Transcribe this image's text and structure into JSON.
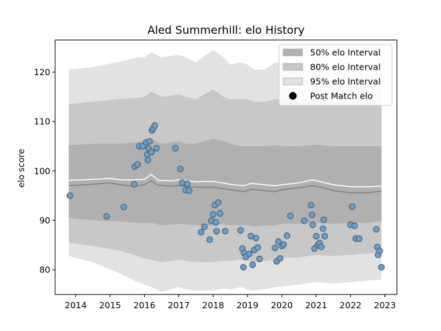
{
  "chart_data": {
    "type": "scatter",
    "title": "Aled Summerhill: elo History",
    "xlabel": "",
    "ylabel": "elo score",
    "xlim": [
      2013.4,
      2023.35
    ],
    "ylim": [
      75,
      126.5
    ],
    "x_ticks": [
      2014,
      2015,
      2016,
      2017,
      2018,
      2019,
      2020,
      2021,
      2022,
      2023
    ],
    "y_ticks": [
      80,
      90,
      100,
      110,
      120
    ],
    "legend": {
      "placement": "top-right",
      "entries": [
        "50% elo Interval",
        "80% elo Interval",
        "95% elo Interval",
        "Post Match elo"
      ]
    },
    "colors": {
      "band50": "#b0b0b0",
      "band80": "#c8c8c8",
      "band95": "#e2e2e2",
      "median_line": "#808080",
      "mean_line": "#ffffff",
      "points": "#6f9ec4",
      "points_edge": "#3d5a73"
    },
    "series": [
      {
        "name": "95% elo Interval",
        "x": [
          2013.8,
          2014.5,
          2015.2,
          2015.8,
          2016.0,
          2016.2,
          2016.5,
          2017.0,
          2017.2,
          2017.5,
          2018.0,
          2018.3,
          2018.5,
          2018.8,
          2019.0,
          2019.2,
          2019.5,
          2019.8,
          2020.0,
          2020.5,
          2021.0,
          2021.5,
          2022.0,
          2022.5,
          2022.9
        ],
        "lower": [
          82.8,
          81.5,
          79.5,
          77.5,
          77.0,
          76.5,
          75.5,
          76.5,
          76.0,
          75.8,
          75.8,
          76.2,
          76.0,
          76.5,
          76.0,
          75.8,
          76.0,
          76.5,
          76.6,
          77.0,
          77.5,
          77.2,
          77.5,
          77.8,
          78.0
        ],
        "upper": [
          120.5,
          121.0,
          122.0,
          123.0,
          123.0,
          124.0,
          123.0,
          123.5,
          123.0,
          122.0,
          124.5,
          123.0,
          121.5,
          122.0,
          121.5,
          120.5,
          120.5,
          122.0,
          121.5,
          121.5,
          121.5,
          121.0,
          121.0,
          120.5,
          120.0
        ]
      },
      {
        "name": "80% elo Interval",
        "x": [
          2013.8,
          2014.5,
          2015.2,
          2015.8,
          2016.0,
          2016.2,
          2016.5,
          2017.0,
          2017.2,
          2017.5,
          2018.0,
          2018.3,
          2018.5,
          2018.8,
          2019.0,
          2019.2,
          2019.5,
          2019.8,
          2020.0,
          2020.5,
          2021.0,
          2021.5,
          2022.0,
          2022.5,
          2022.9
        ],
        "lower": [
          85.5,
          84.8,
          84.0,
          82.8,
          82.3,
          82.0,
          81.5,
          82.0,
          81.8,
          81.5,
          81.5,
          81.8,
          81.8,
          82.0,
          81.8,
          81.5,
          81.8,
          82.0,
          82.5,
          82.5,
          83.0,
          82.8,
          83.0,
          83.3,
          83.5
        ],
        "upper": [
          113.5,
          114.0,
          114.5,
          114.8,
          115.0,
          116.0,
          115.0,
          115.5,
          115.0,
          114.5,
          116.5,
          115.0,
          114.5,
          114.5,
          114.5,
          114.0,
          114.0,
          114.5,
          114.5,
          114.5,
          114.5,
          114.0,
          114.0,
          113.5,
          113.5
        ]
      },
      {
        "name": "50% elo Interval",
        "x": [
          2013.8,
          2014.5,
          2015.2,
          2015.8,
          2016.0,
          2016.2,
          2016.5,
          2017.0,
          2017.2,
          2017.5,
          2018.0,
          2018.3,
          2018.5,
          2018.8,
          2019.0,
          2019.2,
          2019.5,
          2019.8,
          2020.0,
          2020.5,
          2021.0,
          2021.5,
          2022.0,
          2022.5,
          2022.9
        ],
        "lower": [
          90.5,
          90.0,
          89.8,
          89.5,
          89.5,
          89.5,
          89.0,
          89.3,
          89.2,
          89.0,
          89.0,
          89.3,
          89.0,
          89.0,
          89.0,
          88.8,
          89.0,
          89.0,
          89.3,
          89.3,
          89.5,
          89.3,
          89.5,
          89.5,
          89.8
        ],
        "upper": [
          105.2,
          105.5,
          105.5,
          105.8,
          106.0,
          106.5,
          105.5,
          106.0,
          105.5,
          105.5,
          106.5,
          106.0,
          105.5,
          105.0,
          105.0,
          105.0,
          105.0,
          105.2,
          105.0,
          105.0,
          105.3,
          105.0,
          105.0,
          105.0,
          105.0
        ]
      },
      {
        "name": "median",
        "x": [
          2013.8,
          2014.5,
          2015.0,
          2015.3,
          2015.7,
          2016.0,
          2016.2,
          2016.4,
          2016.8,
          2017.0,
          2017.5,
          2018.0,
          2018.5,
          2018.9,
          2019.1,
          2019.5,
          2019.8,
          2020.0,
          2020.5,
          2020.9,
          2021.2,
          2021.5,
          2022.0,
          2022.5,
          2022.9
        ],
        "values": [
          97.0,
          97.3,
          97.6,
          97.2,
          96.9,
          97.2,
          98.0,
          97.1,
          96.9,
          97.0,
          96.7,
          96.7,
          96.2,
          95.8,
          96.3,
          96.0,
          95.8,
          96.2,
          96.6,
          97.0,
          96.6,
          96.0,
          95.6,
          95.6,
          95.9
        ]
      },
      {
        "name": "mean",
        "x": [
          2013.8,
          2014.5,
          2015.0,
          2015.3,
          2015.7,
          2016.0,
          2016.2,
          2016.4,
          2016.8,
          2017.0,
          2017.5,
          2018.0,
          2018.5,
          2018.9,
          2019.1,
          2019.5,
          2019.8,
          2020.0,
          2020.5,
          2020.9,
          2021.2,
          2021.5,
          2022.0,
          2022.5,
          2022.9
        ],
        "values": [
          98.1,
          98.3,
          98.5,
          98.2,
          98.2,
          98.3,
          99.3,
          98.1,
          98.0,
          98.2,
          97.8,
          97.9,
          97.3,
          97.0,
          97.5,
          97.2,
          97.0,
          97.2,
          97.6,
          98.2,
          97.7,
          97.2,
          96.8,
          96.8,
          96.9
        ]
      },
      {
        "name": "Post Match elo",
        "x": [
          2013.83,
          2014.9,
          2015.4,
          2015.7,
          2015.72,
          2015.8,
          2015.85,
          2015.95,
          2016.05,
          2016.08,
          2016.1,
          2016.12,
          2016.15,
          2016.2,
          2016.22,
          2016.25,
          2016.3,
          2016.35,
          2016.9,
          2017.05,
          2017.1,
          2017.2,
          2017.25,
          2017.3,
          2017.65,
          2017.75,
          2017.9,
          2017.95,
          2018.0,
          2018.05,
          2018.08,
          2018.1,
          2018.15,
          2018.2,
          2018.35,
          2018.8,
          2018.85,
          2018.88,
          2018.9,
          2018.95,
          2019.05,
          2019.1,
          2019.15,
          2019.2,
          2019.25,
          2019.3,
          2019.35,
          2019.8,
          2019.85,
          2019.9,
          2019.95,
          2020.0,
          2020.05,
          2020.15,
          2020.25,
          2020.65,
          2020.85,
          2020.88,
          2020.9,
          2020.95,
          2021.0,
          2021.05,
          2021.1,
          2021.15,
          2021.2,
          2021.22,
          2021.25,
          2022.0,
          2022.05,
          2022.12,
          2022.15,
          2022.25,
          2022.75,
          2022.78,
          2022.8,
          2022.85,
          2022.9
        ],
        "values": [
          95.0,
          90.8,
          92.7,
          97.3,
          100.9,
          101.3,
          105.0,
          105.0,
          105.8,
          103.3,
          102.2,
          104.5,
          106.0,
          103.8,
          108.2,
          108.6,
          109.2,
          104.6,
          104.6,
          100.4,
          97.6,
          96.1,
          97.4,
          96.0,
          87.6,
          88.7,
          86.1,
          89.9,
          91.2,
          93.1,
          89.6,
          87.8,
          93.6,
          91.4,
          87.8,
          88.0,
          84.3,
          80.5,
          83.4,
          82.6,
          83.2,
          86.8,
          81.0,
          84.0,
          86.4,
          84.5,
          82.2,
          84.4,
          81.7,
          85.7,
          82.3,
          84.8,
          85.1,
          86.9,
          90.9,
          89.9,
          93.1,
          91.1,
          89.1,
          84.3,
          86.8,
          85.0,
          85.4,
          84.6,
          88.3,
          90.1,
          86.8,
          89.1,
          92.8,
          88.9,
          86.3,
          86.3,
          88.2,
          84.6,
          83.0,
          83.8,
          80.5
        ]
      }
    ]
  }
}
